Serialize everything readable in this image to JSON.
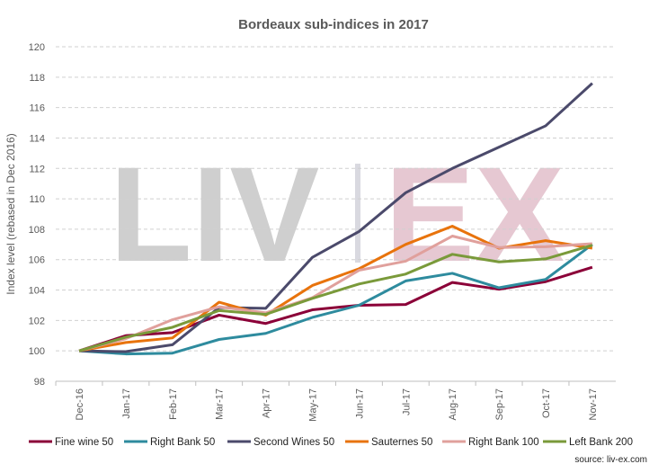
{
  "chart_data": {
    "type": "line",
    "title": "Bordeaux sub-indices in 2017",
    "ylabel": "Index level (rebased in Dec 2016)",
    "xlabel": "",
    "ylim": [
      98,
      120
    ],
    "yticks": [
      98,
      100,
      102,
      104,
      106,
      108,
      110,
      112,
      114,
      116,
      118,
      120
    ],
    "grid": true,
    "legend_position": "bottom",
    "categories": [
      "Dec-16",
      "Jan-17",
      "Feb-17",
      "Mar-17",
      "Apr-17",
      "May-17",
      "Jun-17",
      "Jul-17",
      "Aug-17",
      "Sep-17",
      "Oct-17",
      "Nov-17"
    ],
    "series": [
      {
        "name": "Fine wine 50",
        "color": "#8b0038",
        "values": [
          100,
          101.0,
          101.2,
          102.35,
          101.8,
          102.7,
          103.0,
          103.05,
          104.5,
          104.05,
          104.55,
          105.5
        ]
      },
      {
        "name": "Right Bank 50",
        "color": "#2e8b9e",
        "values": [
          100,
          99.8,
          99.85,
          100.75,
          101.15,
          102.2,
          103.0,
          104.6,
          105.1,
          104.15,
          104.7,
          107.0
        ]
      },
      {
        "name": "Second Wines 50",
        "color": "#4b4a6b",
        "values": [
          100,
          99.95,
          100.4,
          102.85,
          102.8,
          106.15,
          107.85,
          110.4,
          112.0,
          113.4,
          114.8,
          117.6
        ]
      },
      {
        "name": "Sauternes 50",
        "color": "#e8730c",
        "values": [
          100,
          100.55,
          100.85,
          103.2,
          102.35,
          104.3,
          105.4,
          107.0,
          108.2,
          106.75,
          107.25,
          106.75
        ]
      },
      {
        "name": "Right Bank 100",
        "color": "#e0a09c",
        "values": [
          100,
          100.8,
          102.05,
          102.9,
          102.5,
          103.5,
          105.3,
          105.9,
          107.55,
          106.8,
          106.85,
          107.05
        ]
      },
      {
        "name": "Left Bank 200",
        "color": "#7a9a3a",
        "values": [
          100,
          100.9,
          101.55,
          102.65,
          102.4,
          103.45,
          104.4,
          105.05,
          106.35,
          105.85,
          106.05,
          106.95
        ]
      }
    ],
    "source": "source: liv-ex.com",
    "watermark": {
      "left": "LIV",
      "right": "EX"
    }
  }
}
